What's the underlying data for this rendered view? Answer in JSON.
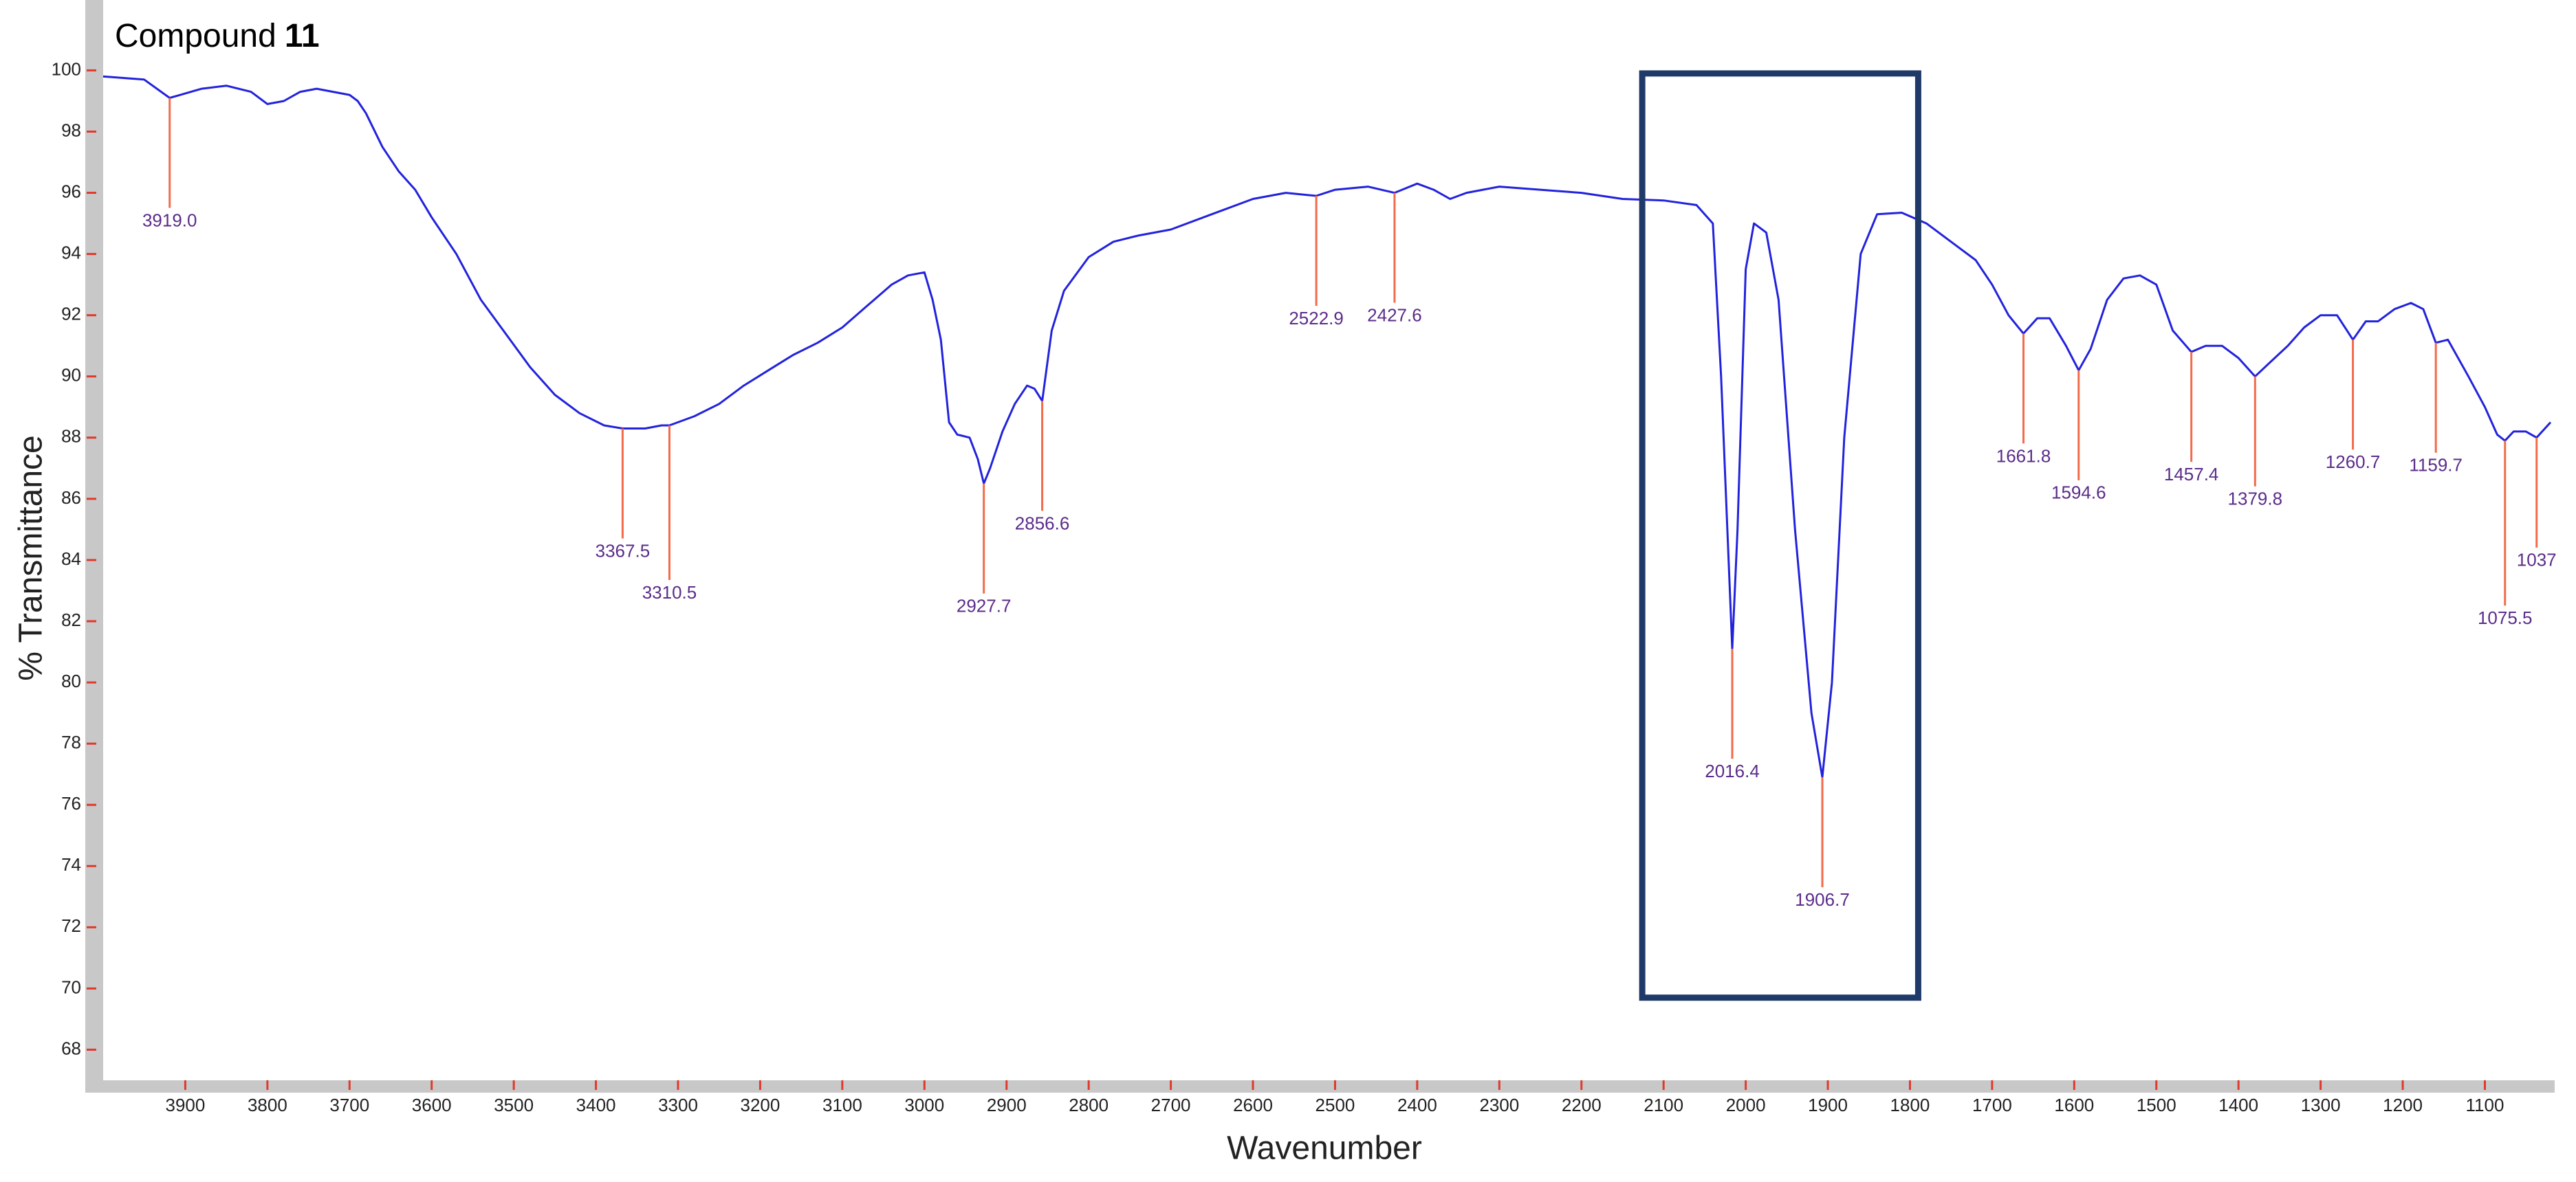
{
  "chart_data": {
    "type": "line",
    "title": "Compound",
    "title_emphasis": "11",
    "x_label": "Wavenumber",
    "y_label": "% Transmittance",
    "color": "#2222dd",
    "x": [
      4000,
      3950,
      3919,
      3880,
      3850,
      3820,
      3800,
      3780,
      3760,
      3740,
      3720,
      3700,
      3690,
      3680,
      3660,
      3640,
      3620,
      3600,
      3570,
      3540,
      3510,
      3480,
      3450,
      3420,
      3390,
      3367.5,
      3340,
      3320,
      3310.5,
      3280,
      3250,
      3220,
      3190,
      3160,
      3130,
      3100,
      3070,
      3040,
      3020,
      3000,
      2990,
      2980,
      2970,
      2960,
      2945,
      2935,
      2927.7,
      2920,
      2905,
      2890,
      2875,
      2866,
      2856.6,
      2845,
      2830,
      2800,
      2770,
      2740,
      2700,
      2650,
      2600,
      2560,
      2522.9,
      2500,
      2460,
      2427.6,
      2400,
      2380,
      2360,
      2340,
      2300,
      2250,
      2200,
      2150,
      2100,
      2060,
      2040,
      2030,
      2016.4,
      2010,
      2000,
      1990,
      1975,
      1960,
      1940,
      1920,
      1906.7,
      1895,
      1880,
      1860,
      1840,
      1810,
      1780,
      1750,
      1720,
      1700,
      1680,
      1661.8,
      1645,
      1630,
      1610,
      1594.6,
      1580,
      1560,
      1540,
      1520,
      1500,
      1480,
      1457.4,
      1440,
      1420,
      1400,
      1379.8,
      1360,
      1340,
      1320,
      1300,
      1280,
      1260.7,
      1245,
      1230,
      1210,
      1190,
      1175,
      1159.7,
      1145,
      1120,
      1100,
      1085,
      1075.5,
      1065,
      1050,
      1037,
      1020
    ],
    "values": [
      99.8,
      99.7,
      99.1,
      99.4,
      99.5,
      99.3,
      98.9,
      99.0,
      99.3,
      99.4,
      99.3,
      99.2,
      99.0,
      98.6,
      97.5,
      96.7,
      96.1,
      95.2,
      94.0,
      92.5,
      91.4,
      90.3,
      89.4,
      88.8,
      88.4,
      88.3,
      88.3,
      88.4,
      88.4,
      88.7,
      89.1,
      89.7,
      90.2,
      90.7,
      91.1,
      91.6,
      92.3,
      93.0,
      93.3,
      93.4,
      92.5,
      91.2,
      88.5,
      88.1,
      88.0,
      87.3,
      86.5,
      87.0,
      88.2,
      89.1,
      89.7,
      89.6,
      89.2,
      91.5,
      92.8,
      93.9,
      94.4,
      94.6,
      94.8,
      95.3,
      95.8,
      96.0,
      95.9,
      96.1,
      96.2,
      96.0,
      96.3,
      96.1,
      95.8,
      96.0,
      96.2,
      96.1,
      96.0,
      95.8,
      95.75,
      95.6,
      95.0,
      90.0,
      81.1,
      85.0,
      93.5,
      95.0,
      94.7,
      92.5,
      85.0,
      79.0,
      76.9,
      80.0,
      88.0,
      94.0,
      95.3,
      95.35,
      95.0,
      94.4,
      93.8,
      93.0,
      92.0,
      91.4,
      91.9,
      91.9,
      91.0,
      90.2,
      90.9,
      92.5,
      93.2,
      93.3,
      93.0,
      91.5,
      90.8,
      91.0,
      91.0,
      90.6,
      90.0,
      90.5,
      91.0,
      91.6,
      92.0,
      92.0,
      91.2,
      91.8,
      91.8,
      92.2,
      92.4,
      92.2,
      91.1,
      91.2,
      90.0,
      89.0,
      88.1,
      87.9,
      88.2,
      88.2,
      88.0,
      88.5
    ],
    "peaks": {
      "x": [
        3919,
        3367.5,
        3310.5,
        2927.7,
        2856.6,
        2522.9,
        2427.6,
        2016.4,
        1906.7,
        1661.8,
        1594.6,
        1457.4,
        1379.8,
        1260.7,
        1159.7,
        1075.5,
        1037
      ],
      "x_labels": [
        "3919.0",
        "3367.5",
        "3310.5",
        "2927.7",
        "2856.6",
        "2522.9",
        "2427.6",
        "2016.4",
        "1906.7",
        "1661.8",
        "1594.6",
        "1457.4",
        "1379.8",
        "1260.7",
        "1159.7",
        "1075.5",
        "1037"
      ],
      "values": [
        99.1,
        88.3,
        88.4,
        86.5,
        89.2,
        95.9,
        96.0,
        81.1,
        76.9,
        91.4,
        90.2,
        90.8,
        90.0,
        91.2,
        91.1,
        87.9,
        88.0
      ],
      "color": "#f26b4a",
      "label_color": "#5b2c8a"
    },
    "highlight": {
      "xlim": [
        2126,
        1790
      ],
      "ylim": [
        69.7,
        99.9
      ],
      "color": "#1f3a68"
    },
    "xlim": [
      4000,
      1015
    ],
    "ylim": [
      67,
      102.3
    ],
    "xticks": [
      3900,
      3800,
      3700,
      3600,
      3500,
      3400,
      3300,
      3200,
      3100,
      3000,
      2900,
      2800,
      2700,
      2600,
      2500,
      2400,
      2300,
      2200,
      2100,
      2000,
      1900,
      1800,
      1700,
      1600,
      1500,
      1400,
      1300,
      1200,
      1100
    ],
    "yticks": [
      68,
      70,
      72,
      74,
      76,
      78,
      80,
      82,
      84,
      86,
      88,
      90,
      92,
      94,
      96,
      98,
      100
    ],
    "tick_color": "#e03a2a",
    "grid": false
  }
}
